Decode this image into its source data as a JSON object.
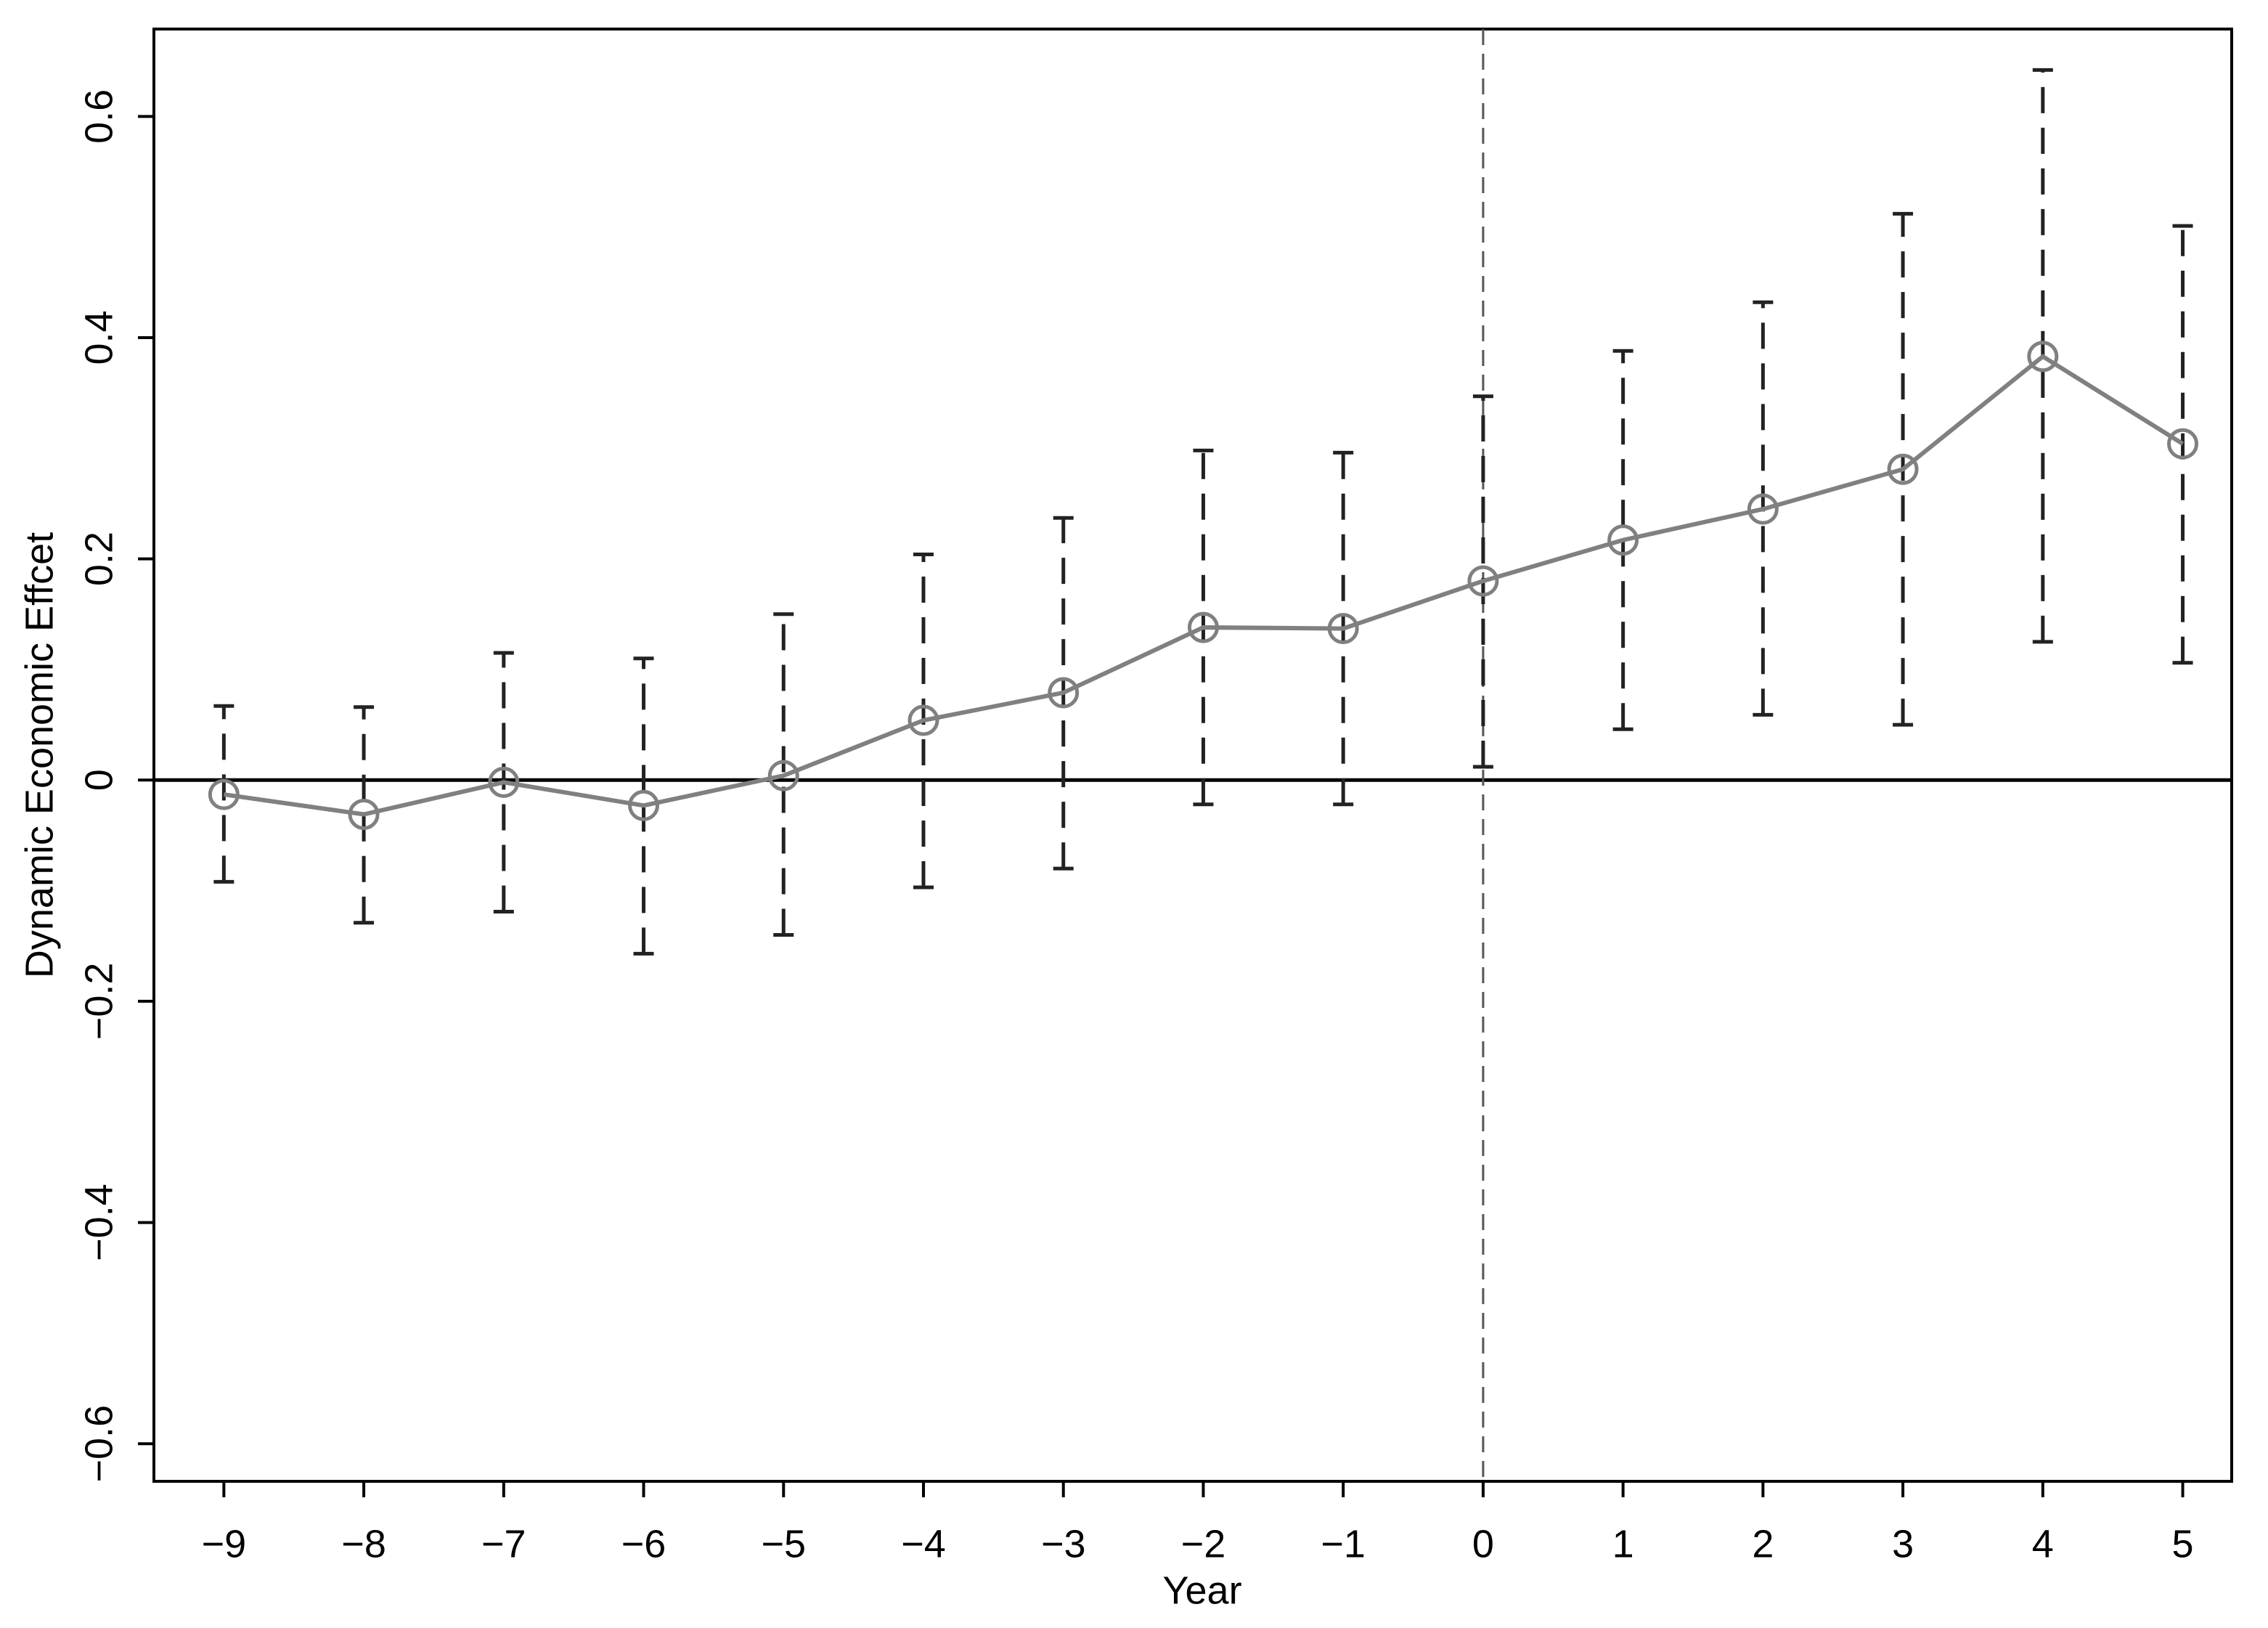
{
  "chart_data": {
    "type": "errorbar-line",
    "x_label": "Year",
    "y_label": "Dynamic Economic Effcet",
    "x": [
      -9,
      -8,
      -7,
      -6,
      -5,
      -4,
      -3,
      -2,
      -1,
      0,
      1,
      2,
      3,
      4,
      5
    ],
    "series": [
      {
        "color": "#808080",
        "error_color": "#222222",
        "values": [
          -0.013,
          -0.031,
          -0.002,
          -0.023,
          0.004,
          0.054,
          0.079,
          0.138,
          0.137,
          0.18,
          0.217,
          0.245,
          0.281,
          0.383,
          0.304
        ],
        "lower": [
          -0.092,
          -0.129,
          -0.119,
          -0.157,
          -0.14,
          -0.097,
          -0.08,
          -0.022,
          -0.022,
          0.012,
          0.046,
          0.059,
          0.05,
          0.125,
          0.106
        ],
        "upper": [
          0.067,
          0.066,
          0.115,
          0.11,
          0.15,
          0.204,
          0.237,
          0.298,
          0.296,
          0.347,
          0.388,
          0.432,
          0.512,
          0.642,
          0.501
        ]
      }
    ],
    "xlim": [
      -9.5,
      5.35
    ],
    "ylim": [
      -0.634,
      0.679
    ],
    "xticks": [
      {
        "value": -9,
        "label": "−9"
      },
      {
        "value": -8,
        "label": "−8"
      },
      {
        "value": -7,
        "label": "−7"
      },
      {
        "value": -6,
        "label": "−6"
      },
      {
        "value": -5,
        "label": "−5"
      },
      {
        "value": -4,
        "label": "−4"
      },
      {
        "value": -3,
        "label": "−3"
      },
      {
        "value": -2,
        "label": "−2"
      },
      {
        "value": -1,
        "label": "−1"
      },
      0,
      1,
      2,
      3,
      4,
      5
    ],
    "yticks": [
      {
        "value": -0.6,
        "label": "−0.6"
      },
      {
        "value": -0.4,
        "label": "−0.4"
      },
      {
        "value": -0.2,
        "label": "−0.2"
      },
      0,
      0.2,
      0.4,
      0.6
    ],
    "hline": 0,
    "vline": 0
  }
}
